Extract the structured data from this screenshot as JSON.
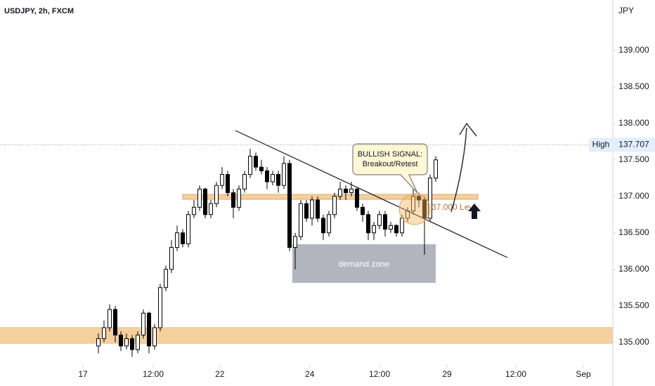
{
  "chart_data": {
    "type": "candlestick",
    "title": "USDJPY, 2h, FXCM",
    "currency": "JPY",
    "x": [
      0,
      1,
      2,
      3,
      4,
      5,
      6,
      7,
      8,
      9,
      10,
      11,
      12,
      13,
      14,
      15,
      16,
      17,
      18,
      19,
      20,
      21,
      22,
      23,
      24,
      25,
      26,
      27,
      28,
      29,
      30,
      31,
      32,
      33,
      34,
      35,
      36,
      37,
      38,
      39,
      40,
      41,
      42,
      43,
      44,
      45,
      46,
      47,
      48,
      49,
      50,
      51,
      52,
      53,
      54,
      55,
      56,
      57,
      58,
      59,
      60
    ],
    "open": [
      134.95,
      135.05,
      135.2,
      135.45,
      135.1,
      134.95,
      135.05,
      134.9,
      135.1,
      135.4,
      134.95,
      135.2,
      135.75,
      136.0,
      136.3,
      136.5,
      136.35,
      136.75,
      136.85,
      137.1,
      136.75,
      136.9,
      137.15,
      137.3,
      137.05,
      136.85,
      137.1,
      137.3,
      137.55,
      137.4,
      137.35,
      137.2,
      137.3,
      137.15,
      137.45,
      136.3,
      136.45,
      136.9,
      136.7,
      136.95,
      136.7,
      136.5,
      136.75,
      137.0,
      137.1,
      137.05,
      137.1,
      136.85,
      136.75,
      136.5,
      136.6,
      136.75,
      136.55,
      136.6,
      136.5,
      136.7,
      136.8,
      137.0,
      136.95,
      136.7,
      137.25
    ],
    "high": [
      135.12,
      135.3,
      135.52,
      135.5,
      135.15,
      135.12,
      135.1,
      135.15,
      135.45,
      135.42,
      135.25,
      135.8,
      136.05,
      136.4,
      136.6,
      136.55,
      136.8,
      136.95,
      137.15,
      137.12,
      136.95,
      137.2,
      137.4,
      137.35,
      137.1,
      137.15,
      137.35,
      137.65,
      137.6,
      137.5,
      137.4,
      137.35,
      137.35,
      137.55,
      137.5,
      136.5,
      136.95,
      136.95,
      137.0,
      137.0,
      136.75,
      136.8,
      137.05,
      137.2,
      137.15,
      137.2,
      137.12,
      136.9,
      136.8,
      136.65,
      136.8,
      136.8,
      136.65,
      136.62,
      136.75,
      136.85,
      137.1,
      137.05,
      137.0,
      137.3,
      137.55
    ],
    "low": [
      134.85,
      135.0,
      135.15,
      135.0,
      134.88,
      134.9,
      134.8,
      134.85,
      135.05,
      134.85,
      134.9,
      135.15,
      135.7,
      135.95,
      136.25,
      136.3,
      136.3,
      136.7,
      136.8,
      136.7,
      136.7,
      136.85,
      137.1,
      137.0,
      136.7,
      136.8,
      137.05,
      137.25,
      137.35,
      137.3,
      137.1,
      137.15,
      137.05,
      137.1,
      136.25,
      136.0,
      136.4,
      136.65,
      136.6,
      136.65,
      136.4,
      136.45,
      136.7,
      136.95,
      136.95,
      137.0,
      136.8,
      136.65,
      136.4,
      136.4,
      136.55,
      136.45,
      136.5,
      136.45,
      136.45,
      136.65,
      136.75,
      136.85,
      136.2,
      136.65,
      137.2
    ],
    "close": [
      135.05,
      135.2,
      135.45,
      135.1,
      134.95,
      135.05,
      134.9,
      135.1,
      135.4,
      134.95,
      135.2,
      135.75,
      136.0,
      136.3,
      136.5,
      136.35,
      136.75,
      136.85,
      137.1,
      136.75,
      136.9,
      137.15,
      137.3,
      137.05,
      136.85,
      137.1,
      137.3,
      137.55,
      137.4,
      137.35,
      137.2,
      137.3,
      137.15,
      137.45,
      136.3,
      136.45,
      136.9,
      136.7,
      136.95,
      136.7,
      136.5,
      136.75,
      137.0,
      137.1,
      137.05,
      137.1,
      136.85,
      136.75,
      136.5,
      136.6,
      136.75,
      136.55,
      136.6,
      136.5,
      136.7,
      136.8,
      137.0,
      136.95,
      136.7,
      137.25,
      137.5
    ],
    "up_color": "#ffffff",
    "down_color": "#000000",
    "outline_color": "#000000",
    "xlim": [
      -17.5,
      91.5
    ],
    "xticks": [
      {
        "value": -2.75,
        "label": "17"
      },
      {
        "value": 9.75,
        "label": "12:00"
      },
      {
        "value": 21.6,
        "label": "22"
      },
      {
        "value": 37.6,
        "label": "24"
      },
      {
        "value": 50,
        "label": "12:00"
      },
      {
        "value": 62,
        "label": "29"
      },
      {
        "value": 74.25,
        "label": "12:00"
      },
      {
        "value": 86.25,
        "label": "Sep"
      }
    ],
    "ylim": [
      134.69,
      139.69
    ],
    "yticks": [
      {
        "value": 135,
        "label": "135.000"
      },
      {
        "value": 135.5,
        "label": "135.500"
      },
      {
        "value": 136,
        "label": "136.000"
      },
      {
        "value": 136.5,
        "label": "136.500"
      },
      {
        "value": 137,
        "label": "137.000"
      },
      {
        "value": 137.5,
        "label": "137.500"
      },
      {
        "value": 138,
        "label": "138.000"
      },
      {
        "value": 138.5,
        "label": "138.500"
      },
      {
        "value": 139,
        "label": "139.000"
      }
    ],
    "high_label": "High",
    "high_value": {
      "value": 137.707,
      "label": "137.707"
    },
    "annotations": {
      "signal_line1": "BULLISH SIGNAL:",
      "signal_line2": "Breakout/Retest",
      "zone": "demand zone",
      "level": "37.000 Lev"
    }
  }
}
